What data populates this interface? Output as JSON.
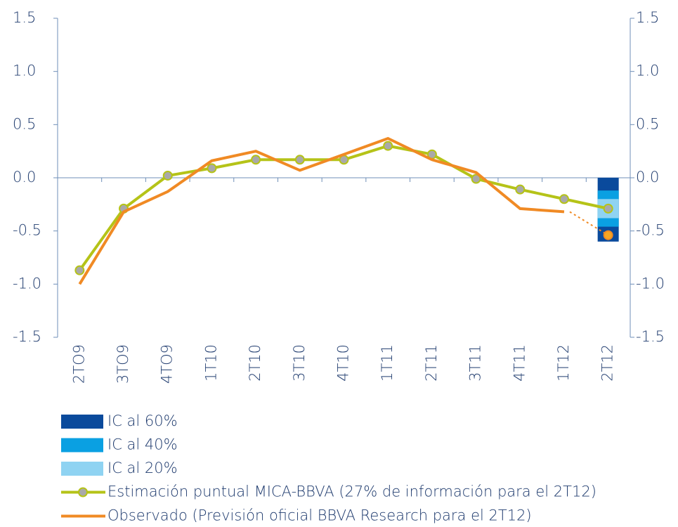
{
  "chart_data": {
    "type": "line",
    "categories": [
      "2TO9",
      "3TO9",
      "4TO9",
      "1T10",
      "2T10",
      "3T10",
      "4T10",
      "1T11",
      "2T11",
      "3T11",
      "4T11",
      "1T12",
      "2T12"
    ],
    "series": [
      {
        "name": "Estimación puntual MICA-BBVA (27% de información para el 2T12)",
        "color": "#b5c318",
        "marker_color": "#a9a9a9",
        "values": [
          -0.87,
          -0.29,
          0.02,
          0.09,
          0.17,
          0.17,
          0.17,
          0.3,
          0.22,
          -0.01,
          -0.11,
          -0.2,
          -0.29
        ]
      },
      {
        "name": "Observado (Previsión oficial BBVA Research para el 2T12)",
        "color": "#f08a24",
        "marker_color": "#f6a623",
        "dashed_last": true,
        "values": [
          -1.0,
          -0.32,
          -0.13,
          0.16,
          0.25,
          0.07,
          0.22,
          0.37,
          0.17,
          0.05,
          -0.29,
          -0.32,
          -0.54
        ]
      }
    ],
    "intervals": [
      {
        "name": "IC al 60%",
        "color": "#0a4a9c",
        "category": 12,
        "values": [
          -0.6,
          0.0
        ]
      },
      {
        "name": "IC al 40%",
        "color": "#0aa0e2",
        "category": 12,
        "values": [
          -0.46,
          -0.12
        ]
      },
      {
        "name": "IC al 20%",
        "color": "#8fd3f2",
        "category": 12,
        "values": [
          -0.38,
          -0.2
        ]
      }
    ],
    "ylim": [
      -1.5,
      1.5
    ],
    "yticks": [
      {
        "value": -1.5,
        "label": "-1.5"
      },
      {
        "value": -1,
        "label": "-1.0"
      },
      -0.5,
      {
        "value": 0,
        "label": "0.0"
      },
      0.5,
      {
        "value": 1,
        "label": "1.0"
      },
      1.5
    ],
    "y2lim": [
      -1.5,
      1.5
    ],
    "y2ticks": [
      {
        "value": -1.5,
        "label": "-1.5"
      },
      {
        "value": -1,
        "label": "-1.0"
      },
      -0.5,
      {
        "value": 0,
        "label": "0.0"
      },
      0.5,
      {
        "value": 1,
        "label": "1.0"
      },
      1.5
    ]
  }
}
